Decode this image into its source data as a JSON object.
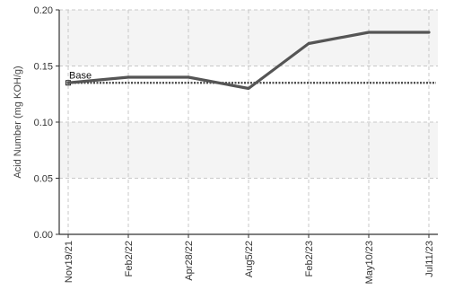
{
  "chart_data": {
    "type": "line",
    "title": "",
    "xlabel": "",
    "ylabel": "Acid Number (mg KOH/g)",
    "categories": [
      "Nov19/21",
      "Feb2/22",
      "Apr28/22",
      "Aug5/22",
      "Feb2/23",
      "May10/23",
      "Jul11/23"
    ],
    "series": [
      {
        "values": [
          0.135,
          0.14,
          0.14,
          0.13,
          0.17,
          0.18,
          0.18
        ]
      }
    ],
    "baseline": {
      "label": "Base",
      "value": 0.135
    },
    "ylim": [
      0,
      0.2
    ],
    "yticks": [
      "0.00",
      "0.05",
      "0.10",
      "0.15",
      "0.20"
    ],
    "grid": true,
    "legend": "none",
    "colors": {
      "series": "#555555",
      "baseline": "#444444",
      "band_shaded": "#f4f4f4",
      "band_plain": "#ffffff",
      "grid": "#c8c8c8",
      "axis": "#333333"
    }
  }
}
